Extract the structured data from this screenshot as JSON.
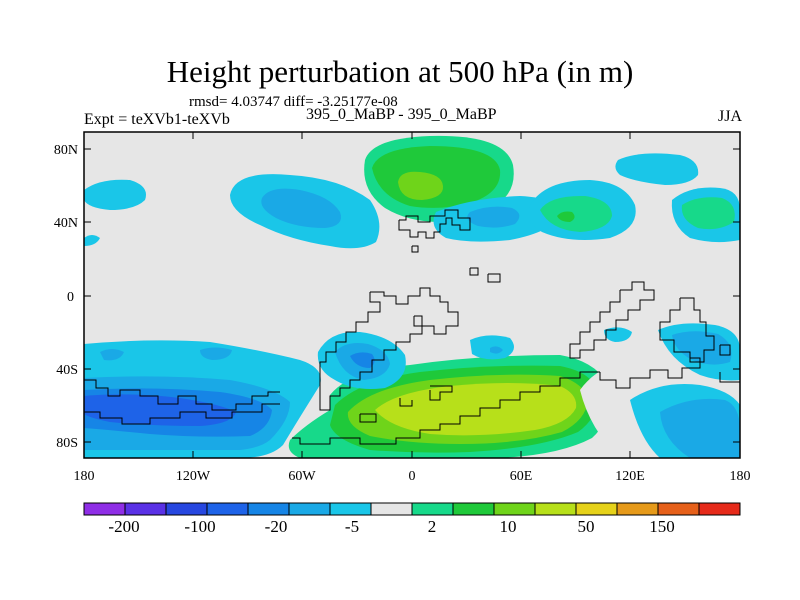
{
  "title": "Height perturbation at 500 hPa (in m)",
  "stats": "rmsd= 4.03747 diff= -3.25177e-08",
  "experiment": "Expt = teXVb1-teXVb",
  "subtitle": "395_0_MaBP - 395_0_MaBP",
  "season": "JJA",
  "axes": {
    "lat_labels": [
      "80N",
      "40N",
      "0",
      "40S",
      "80S"
    ],
    "lon_labels": [
      "180",
      "120W",
      "60W",
      "0",
      "60E",
      "120E",
      "180"
    ]
  },
  "colorbar": {
    "colors": [
      "#8f2ee6",
      "#5a31e6",
      "#2747e0",
      "#1e63e8",
      "#1685e6",
      "#1aa9e6",
      "#1ac6e8",
      "#e6e6e6",
      "#17d98a",
      "#1fc93a",
      "#6fd41a",
      "#b7e01a",
      "#e6d21a",
      "#e69a1a",
      "#e6601a",
      "#e62a1a"
    ],
    "labels": [
      "-200",
      "-100",
      "-20",
      "-5",
      "2",
      "10",
      "50",
      "150"
    ]
  }
}
